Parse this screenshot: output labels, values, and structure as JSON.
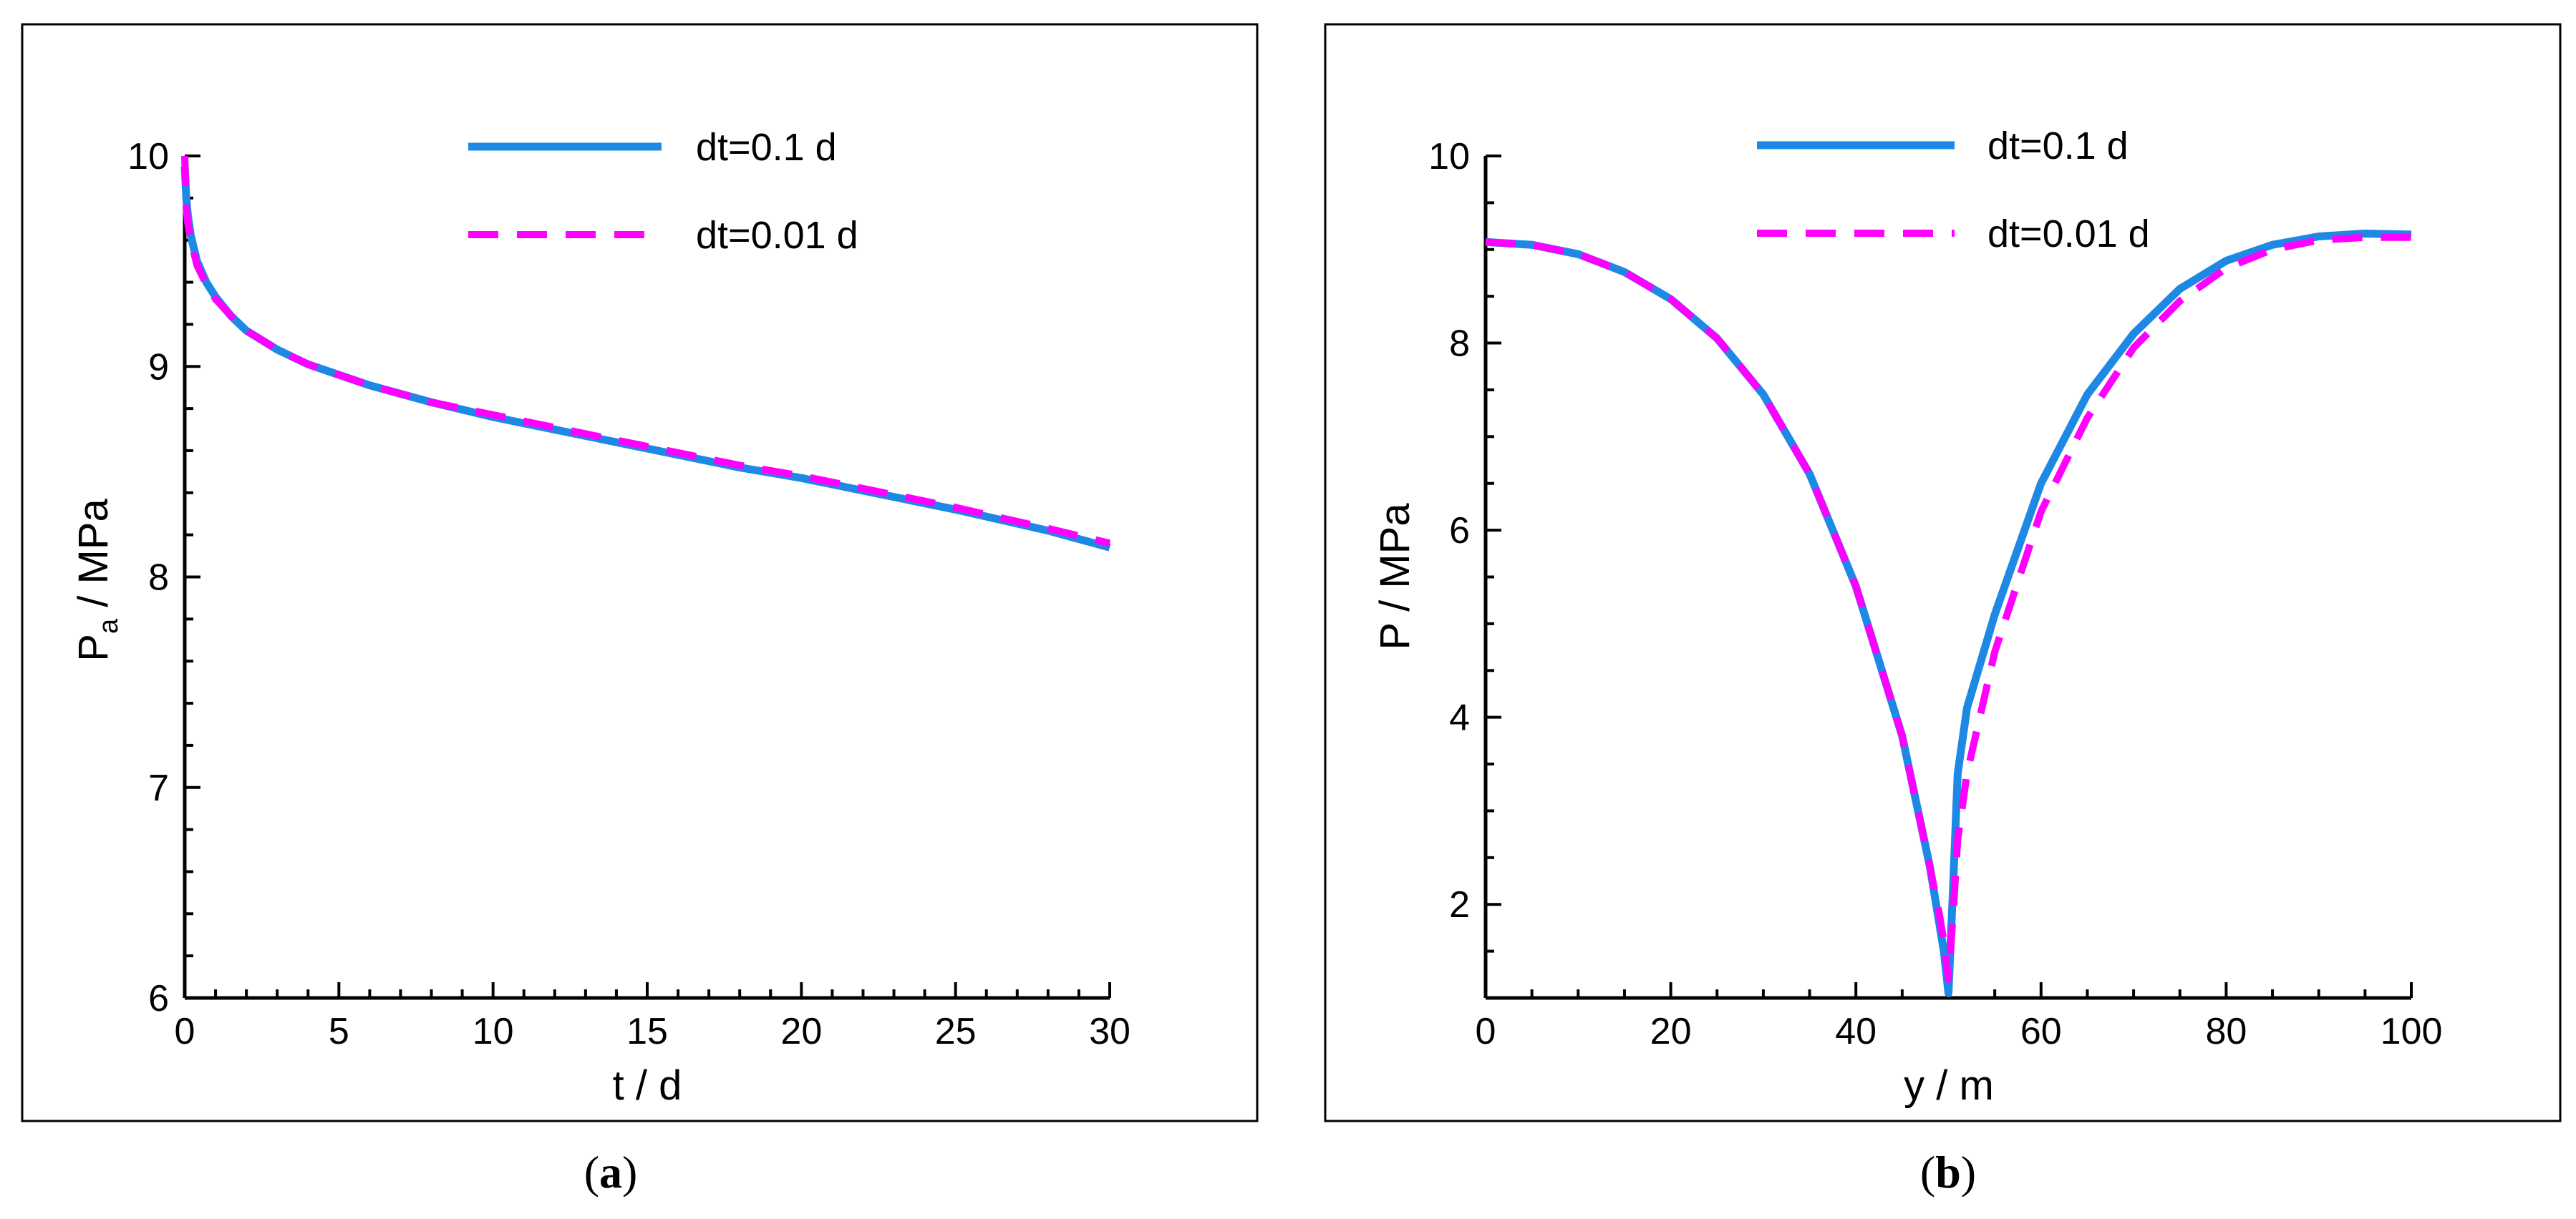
{
  "colors": {
    "series_solid": "#1E88E5",
    "series_dashed": "#FF00FF",
    "axis": "#000000"
  },
  "captions": {
    "a_open": "(",
    "a_letter": "a",
    "a_close": ")",
    "b_open": "(",
    "b_letter": "b",
    "b_close": ")"
  },
  "chart_data": [
    {
      "type": "line",
      "panel": "a",
      "title": "",
      "xlabel": "t / d",
      "ylabel_main": "P",
      "ylabel_sub": "a",
      "ylabel_rest": " / MPa",
      "xlim": [
        0,
        30
      ],
      "ylim": [
        6,
        10
      ],
      "xticks": [
        0,
        5,
        10,
        15,
        20,
        25,
        30
      ],
      "yticks": [
        6,
        7,
        8,
        9,
        10
      ],
      "legend": {
        "position": "top-right",
        "entries": [
          "dt=0.1 d",
          "dt=0.01 d"
        ]
      },
      "series": [
        {
          "name": "dt=0.1 d",
          "style": "solid",
          "x": [
            0,
            0.05,
            0.1,
            0.2,
            0.4,
            0.7,
            1,
            1.5,
            2,
            3,
            4,
            5,
            6,
            8,
            10,
            12,
            15,
            18,
            20,
            22,
            25,
            28,
            30
          ],
          "y": [
            9.95,
            9.8,
            9.72,
            9.62,
            9.5,
            9.4,
            9.33,
            9.24,
            9.17,
            9.08,
            9.01,
            8.96,
            8.91,
            8.83,
            8.76,
            8.7,
            8.61,
            8.52,
            8.47,
            8.41,
            8.32,
            8.22,
            8.14
          ]
        },
        {
          "name": "dt=0.01 d",
          "style": "dashed",
          "x": [
            0,
            0.05,
            0.1,
            0.2,
            0.4,
            0.7,
            1,
            1.5,
            2,
            3,
            4,
            5,
            6,
            8,
            10,
            12,
            15,
            18,
            20,
            22,
            25,
            28,
            30
          ],
          "y": [
            10.0,
            9.75,
            9.68,
            9.6,
            9.48,
            9.39,
            9.32,
            9.24,
            9.17,
            9.08,
            9.01,
            8.96,
            8.91,
            8.83,
            8.77,
            8.71,
            8.62,
            8.53,
            8.48,
            8.42,
            8.33,
            8.23,
            8.16
          ]
        }
      ]
    },
    {
      "type": "line",
      "panel": "b",
      "title": "",
      "xlabel": "y / m",
      "ylabel": "P / MPa",
      "xlim": [
        0,
        100
      ],
      "ylim": [
        1,
        10
      ],
      "xticks": [
        0,
        20,
        40,
        60,
        80,
        100
      ],
      "yticks": [
        2,
        4,
        6,
        8,
        10
      ],
      "legend": {
        "position": "top-right",
        "entries": [
          "dt=0.1 d",
          "dt=0.01 d"
        ]
      },
      "series": [
        {
          "name": "dt=0.1 d",
          "style": "solid",
          "x": [
            0,
            5,
            10,
            15,
            20,
            25,
            30,
            35,
            40,
            45,
            48,
            49,
            49.5,
            50,
            50.5,
            51,
            52,
            55,
            60,
            65,
            70,
            75,
            80,
            85,
            90,
            95,
            100
          ],
          "y": [
            9.08,
            9.05,
            8.95,
            8.76,
            8.47,
            8.05,
            7.45,
            6.6,
            5.4,
            3.8,
            2.4,
            1.8,
            1.5,
            1.05,
            2.2,
            3.4,
            4.1,
            5.1,
            6.5,
            7.45,
            8.1,
            8.58,
            8.88,
            9.05,
            9.14,
            9.17,
            9.16
          ]
        },
        {
          "name": "dt=0.01 d",
          "style": "dashed",
          "x": [
            0,
            5,
            10,
            15,
            20,
            25,
            30,
            35,
            40,
            45,
            48,
            49,
            49.5,
            50,
            50.5,
            51,
            52,
            55,
            60,
            65,
            70,
            75,
            80,
            85,
            90,
            95,
            100
          ],
          "y": [
            9.08,
            9.05,
            8.95,
            8.76,
            8.47,
            8.05,
            7.45,
            6.6,
            5.4,
            3.8,
            2.4,
            1.9,
            1.6,
            1.2,
            1.9,
            2.7,
            3.4,
            4.7,
            6.2,
            7.2,
            7.95,
            8.45,
            8.8,
            9.0,
            9.1,
            9.13,
            9.13
          ]
        }
      ]
    }
  ]
}
